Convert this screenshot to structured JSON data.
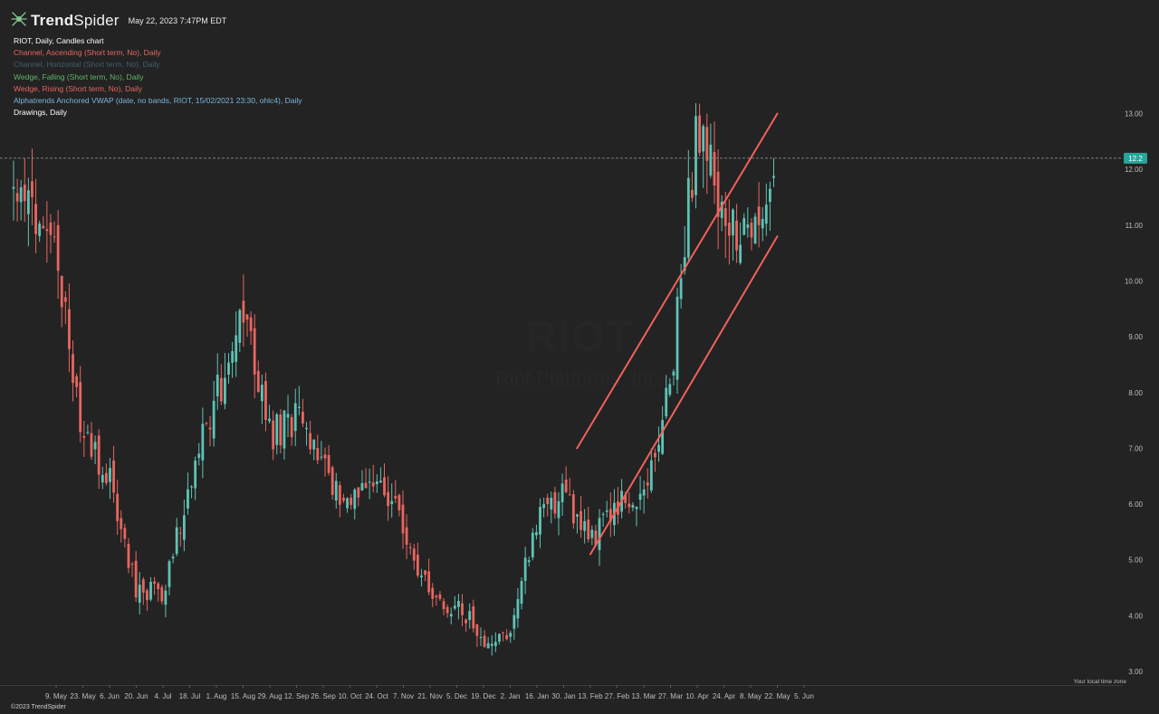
{
  "header": {
    "brand_name_bold": "Trend",
    "brand_name_light": "Spider",
    "timestamp": "May 22, 2023 7:47PM EDT"
  },
  "legend": [
    {
      "text": "RIOT, Daily, Candles chart",
      "color": "#ffffff"
    },
    {
      "text": "Channel, Ascending (Short term, No), Daily",
      "color": "#e8665f"
    },
    {
      "text": "Channel, Horizontal (Short term, No), Daily",
      "color": "#3f5f72"
    },
    {
      "text": "Wedge, Falling (Short term, No), Daily",
      "color": "#5fb56a"
    },
    {
      "text": "Wedge, Rising (Short term, No), Daily",
      "color": "#e8665f"
    },
    {
      "text": "Alphatrends Anchored VWAP (date, no bands, RIOT, 15/02/2021 23:30, ohlc4), Daily",
      "color": "#78b6de"
    },
    {
      "text": "Drawings, Daily",
      "color": "#ffffff"
    }
  ],
  "watermark": {
    "ticker": "RIOT",
    "company": "Riot Platforms, Inc."
  },
  "footer": {
    "timezone_label": "Your local time zone",
    "copyright": "©2023 TrendSpider"
  },
  "colors": {
    "background": "#232323",
    "up_candle": "#5ec3b5",
    "down_candle": "#e8665f",
    "channel_line": "#f2615a",
    "price_badge": "#26a69a"
  },
  "chart_data": {
    "type": "candlestick",
    "ticker": "RIOT",
    "interval": "Daily",
    "ylim": [
      3.0,
      14.0
    ],
    "y_ticks": [
      "3.00",
      "4.00",
      "5.00",
      "6.00",
      "7.00",
      "8.00",
      "9.00",
      "10.00",
      "11.00",
      "12.00",
      "13.00"
    ],
    "x_ticks": [
      "9. May",
      "23. May",
      "6. Jun",
      "20. Jun",
      "4. Jul",
      "18. Jul",
      "1. Aug",
      "15. Aug",
      "29. Aug",
      "12. Sep",
      "26. Sep",
      "10. Oct",
      "24. Oct",
      "7. Nov",
      "21. Nov",
      "5. Dec",
      "19. Dec",
      "2. Jan",
      "16. Jan",
      "30. Jan",
      "13. Feb",
      "27. Feb",
      "13. Mar",
      "27. Mar",
      "10. Apr",
      "24. Apr",
      "8. May",
      "22. May",
      "5. Jun"
    ],
    "last_price": 12.2,
    "last_price_label": "12.2",
    "approx_closes": [
      {
        "date": "9. May",
        "close": 10.6
      },
      {
        "date": "23. May",
        "close": 7.2
      },
      {
        "date": "6. Jun",
        "close": 6.4
      },
      {
        "date": "20. Jun",
        "close": 4.5
      },
      {
        "date": "4. Jul",
        "close": 4.4
      },
      {
        "date": "18. Jul",
        "close": 6.4
      },
      {
        "date": "1. Aug",
        "close": 7.9
      },
      {
        "date": "15. Aug",
        "close": 9.6
      },
      {
        "date": "29. Aug",
        "close": 7.2
      },
      {
        "date": "12. Sep",
        "close": 7.6
      },
      {
        "date": "26. Sep",
        "close": 6.6
      },
      {
        "date": "10. Oct",
        "close": 6.0
      },
      {
        "date": "24. Oct",
        "close": 6.6
      },
      {
        "date": "7. Nov",
        "close": 5.6
      },
      {
        "date": "21. Nov",
        "close": 4.3
      },
      {
        "date": "5. Dec",
        "close": 4.2
      },
      {
        "date": "19. Dec",
        "close": 3.6
      },
      {
        "date": "2. Jan",
        "close": 3.6
      },
      {
        "date": "16. Jan",
        "close": 5.8
      },
      {
        "date": "30. Jan",
        "close": 6.2
      },
      {
        "date": "13. Feb",
        "close": 5.3
      },
      {
        "date": "27. Feb",
        "close": 6.0
      },
      {
        "date": "13. Mar",
        "close": 6.2
      },
      {
        "date": "27. Mar",
        "close": 8.2
      },
      {
        "date": "10. Apr",
        "close": 12.9
      },
      {
        "date": "24. Apr",
        "close": 11.0
      },
      {
        "date": "8. May",
        "close": 11.0
      },
      {
        "date": "22. May",
        "close": 12.2
      }
    ],
    "trendlines": [
      {
        "name": "channel-upper",
        "from": {
          "date": "6. Feb",
          "value": 7.0
        },
        "to": {
          "date": "22. May",
          "value": 13.0
        }
      },
      {
        "name": "channel-lower",
        "from": {
          "date": "13. Feb",
          "value": 5.1
        },
        "to": {
          "date": "22. May",
          "value": 10.8
        }
      }
    ]
  }
}
